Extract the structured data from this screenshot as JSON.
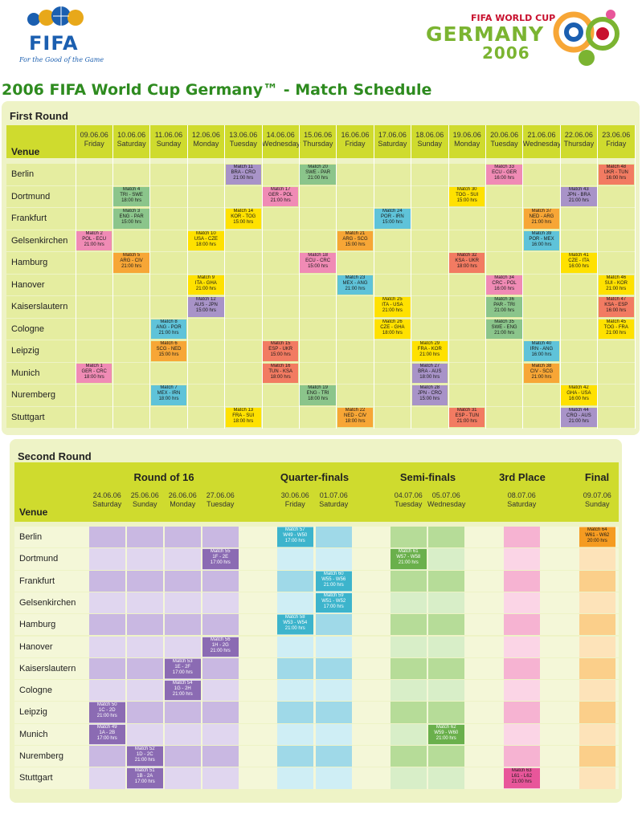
{
  "header": {
    "fifa_logo_text": "FIFA",
    "fifa_slogan": "For the Good of the Game",
    "wc_small": "FIFA WORLD CUP",
    "wc_germany": "GERMANY",
    "wc_year": "2006",
    "title": "2006 FIFA World Cup Germany™  -  Match Schedule"
  },
  "colors": {
    "panel_bg": "#eef3c6",
    "header_band": "#cfdb2e",
    "row_green": "#e5eda0",
    "group_pink": "#f08bb5",
    "group_green": "#8bc58b",
    "group_yellow": "#ffe100",
    "group_orange": "#f7a636",
    "group_blue": "#5fc3d9",
    "group_purple": "#a893c8",
    "group_salmon": "#f27b62",
    "r16": "#8b6bb3",
    "qf": "#3db4cc",
    "sf": "#6ab04c",
    "third": "#e8569a",
    "final": "#f59b21"
  },
  "first_round": {
    "title": "First Round",
    "venue_label": "Venue",
    "dates": [
      {
        "date": "09.06.06",
        "day": "Friday"
      },
      {
        "date": "10.06.06",
        "day": "Saturday"
      },
      {
        "date": "11.06.06",
        "day": "Sunday"
      },
      {
        "date": "12.06.06",
        "day": "Monday"
      },
      {
        "date": "13.06.06",
        "day": "Tuesday"
      },
      {
        "date": "14.06.06",
        "day": "Wednesday"
      },
      {
        "date": "15.06.06",
        "day": "Thursday"
      },
      {
        "date": "16.06.06",
        "day": "Friday"
      },
      {
        "date": "17.06.06",
        "day": "Saturday"
      },
      {
        "date": "18.06.06",
        "day": "Sunday"
      },
      {
        "date": "19.06.06",
        "day": "Monday"
      },
      {
        "date": "20.06.06",
        "day": "Tuesday"
      },
      {
        "date": "21.06.06",
        "day": "Wednesday"
      },
      {
        "date": "22.06.06",
        "day": "Thursday"
      },
      {
        "date": "23.06.06",
        "day": "Friday"
      }
    ],
    "venues": [
      "Berlin",
      "Dortmund",
      "Frankfurt",
      "Gelsenkirchen",
      "Hamburg",
      "Hanover",
      "Kaiserslautern",
      "Cologne",
      "Leipzig",
      "Munich",
      "Nuremberg",
      "Stuttgart"
    ],
    "matches": [
      {
        "row": 0,
        "col": 4,
        "c": "purple",
        "a": "Match 11",
        "b": "BRA - CRO",
        "t": "21:00 hrs"
      },
      {
        "row": 0,
        "col": 6,
        "c": "green",
        "a": "Match 20",
        "b": "SWE - PAR",
        "t": "21:00 hrs"
      },
      {
        "row": 0,
        "col": 11,
        "c": "pink",
        "a": "Match 33",
        "b": "ECU - GER",
        "t": "16:00 hrs"
      },
      {
        "row": 0,
        "col": 14,
        "c": "salmon",
        "a": "Match 48",
        "b": "UKR - TUN",
        "t": "16:00 hrs"
      },
      {
        "row": 1,
        "col": 1,
        "c": "green",
        "a": "Match 4",
        "b": "TRI - SWE",
        "t": "18:00 hrs"
      },
      {
        "row": 1,
        "col": 5,
        "c": "pink",
        "a": "Match 17",
        "b": "GER - POL",
        "t": "21:00 hrs"
      },
      {
        "row": 1,
        "col": 10,
        "c": "yellow",
        "a": "Match 30",
        "b": "TOG - SUI",
        "t": "15:00 hrs"
      },
      {
        "row": 1,
        "col": 13,
        "c": "purple",
        "a": "Match 43",
        "b": "JPN - BRA",
        "t": "21:00 hrs"
      },
      {
        "row": 2,
        "col": 1,
        "c": "green",
        "a": "Match 3",
        "b": "ENG - PAR",
        "t": "15:00 hrs"
      },
      {
        "row": 2,
        "col": 4,
        "c": "yellow",
        "a": "Match 14",
        "b": "KOR - TOG",
        "t": "15:00 hrs"
      },
      {
        "row": 2,
        "col": 8,
        "c": "blue",
        "a": "Match 24",
        "b": "POR - IRN",
        "t": "15:00 hrs"
      },
      {
        "row": 2,
        "col": 12,
        "c": "orange",
        "a": "Match 37",
        "b": "NED - ARG",
        "t": "21:00 hrs"
      },
      {
        "row": 3,
        "col": 0,
        "c": "pink",
        "a": "Match 2",
        "b": "POL - ECU",
        "t": "21:00 hrs"
      },
      {
        "row": 3,
        "col": 3,
        "c": "yellow",
        "a": "Match 10",
        "b": "USA - CZE",
        "t": "18:00 hrs"
      },
      {
        "row": 3,
        "col": 7,
        "c": "orange",
        "a": "Match 21",
        "b": "ARG - SCG",
        "t": "15:00 hrs"
      },
      {
        "row": 3,
        "col": 12,
        "c": "blue",
        "a": "Match 39",
        "b": "POR - MEX",
        "t": "16:00 hrs"
      },
      {
        "row": 4,
        "col": 1,
        "c": "orange",
        "a": "Match 5",
        "b": "ARG - CIV",
        "t": "21:00 hrs"
      },
      {
        "row": 4,
        "col": 6,
        "c": "pink",
        "a": "Match 18",
        "b": "ECU - CRC",
        "t": "15:00 hrs"
      },
      {
        "row": 4,
        "col": 10,
        "c": "salmon",
        "a": "Match 32",
        "b": "KSA - UKR",
        "t": "18:00 hrs"
      },
      {
        "row": 4,
        "col": 13,
        "c": "yellow",
        "a": "Match 41",
        "b": "CZE - ITA",
        "t": "16:00 hrs"
      },
      {
        "row": 5,
        "col": 3,
        "c": "yellow",
        "a": "Match 9",
        "b": "ITA - GHA",
        "t": "21:00 hrs"
      },
      {
        "row": 5,
        "col": 7,
        "c": "blue",
        "a": "Match 23",
        "b": "MEX - ANG",
        "t": "21:00 hrs"
      },
      {
        "row": 5,
        "col": 11,
        "c": "pink",
        "a": "Match 34",
        "b": "CRC - POL",
        "t": "16:00 hrs"
      },
      {
        "row": 5,
        "col": 14,
        "c": "yellow",
        "a": "Match 46",
        "b": "SUI - KOR",
        "t": "21:00 hrs"
      },
      {
        "row": 6,
        "col": 3,
        "c": "purple",
        "a": "Match 12",
        "b": "AUS - JPN",
        "t": "15:00 hrs"
      },
      {
        "row": 6,
        "col": 8,
        "c": "yellow",
        "a": "Match 25",
        "b": "ITA - USA",
        "t": "21:00 hrs"
      },
      {
        "row": 6,
        "col": 11,
        "c": "green",
        "a": "Match 36",
        "b": "PAR - TRI",
        "t": "21:00 hrs"
      },
      {
        "row": 6,
        "col": 14,
        "c": "salmon",
        "a": "Match 47",
        "b": "KSA - ESP",
        "t": "16:00 hrs"
      },
      {
        "row": 7,
        "col": 2,
        "c": "blue",
        "a": "Match 8",
        "b": "ANG - POR",
        "t": "21:00 hrs"
      },
      {
        "row": 7,
        "col": 8,
        "c": "yellow",
        "a": "Match 26",
        "b": "CZE - GHA",
        "t": "18:00 hrs"
      },
      {
        "row": 7,
        "col": 11,
        "c": "green",
        "a": "Match 35",
        "b": "SWE - ENG",
        "t": "21:00 hrs"
      },
      {
        "row": 7,
        "col": 14,
        "c": "yellow",
        "a": "Match 45",
        "b": "TOG - FRA",
        "t": "21:00 hrs"
      },
      {
        "row": 8,
        "col": 2,
        "c": "orange",
        "a": "Match 6",
        "b": "SCG - NED",
        "t": "15:00 hrs"
      },
      {
        "row": 8,
        "col": 5,
        "c": "salmon",
        "a": "Match 15",
        "b": "ESP - UKR",
        "t": "15:00 hrs"
      },
      {
        "row": 8,
        "col": 9,
        "c": "yellow",
        "a": "Match 29",
        "b": "FRA - KOR",
        "t": "21:00 hrs"
      },
      {
        "row": 8,
        "col": 12,
        "c": "blue",
        "a": "Match 40",
        "b": "IRN - ANG",
        "t": "16:00 hrs"
      },
      {
        "row": 9,
        "col": 0,
        "c": "pink",
        "a": "Match 1",
        "b": "GER - CRC",
        "t": "18:00 hrs"
      },
      {
        "row": 9,
        "col": 5,
        "c": "salmon",
        "a": "Match 16",
        "b": "TUN - KSA",
        "t": "18:00 hrs"
      },
      {
        "row": 9,
        "col": 9,
        "c": "purple",
        "a": "Match 27",
        "b": "BRA - AUS",
        "t": "18:00 hrs"
      },
      {
        "row": 9,
        "col": 12,
        "c": "orange",
        "a": "Match 38",
        "b": "CIV - SCG",
        "t": "21:00 hrs"
      },
      {
        "row": 10,
        "col": 2,
        "c": "blue",
        "a": "Match 7",
        "b": "MEX - IRN",
        "t": "18:00 hrs"
      },
      {
        "row": 10,
        "col": 6,
        "c": "green",
        "a": "Match 19",
        "b": "ENG - TRI",
        "t": "18:00 hrs"
      },
      {
        "row": 10,
        "col": 9,
        "c": "purple",
        "a": "Match 28",
        "b": "JPN - CRO",
        "t": "15:00 hrs"
      },
      {
        "row": 10,
        "col": 13,
        "c": "yellow",
        "a": "Match 42",
        "b": "GHA - USA",
        "t": "16:00 hrs"
      },
      {
        "row": 11,
        "col": 4,
        "c": "yellow",
        "a": "Match 13",
        "b": "FRA - SUI",
        "t": "18:00 hrs"
      },
      {
        "row": 11,
        "col": 7,
        "c": "orange",
        "a": "Match 22",
        "b": "NED - CIV",
        "t": "18:00 hrs"
      },
      {
        "row": 11,
        "col": 10,
        "c": "salmon",
        "a": "Match 31",
        "b": "ESP - TUN",
        "t": "21:00 hrs"
      },
      {
        "row": 11,
        "col": 13,
        "c": "purple",
        "a": "Match 44",
        "b": "CRO - AUS",
        "t": "21:00 hrs"
      }
    ]
  },
  "second_round": {
    "title": "Second Round",
    "venue_label": "Venue",
    "stages": [
      "Round of 16",
      "Quarter-finals",
      "Semi-finals",
      "3rd Place",
      "Final"
    ],
    "dates": [
      {
        "date": "24.06.06",
        "day": "Saturday"
      },
      {
        "date": "25.06.06",
        "day": "Sunday"
      },
      {
        "date": "26.06.06",
        "day": "Monday"
      },
      {
        "date": "27.06.06",
        "day": "Tuesday"
      },
      {
        "date": "30.06.06",
        "day": "Friday"
      },
      {
        "date": "01.07.06",
        "day": "Saturday"
      },
      {
        "date": "04.07.06",
        "day": "Tuesday"
      },
      {
        "date": "05.07.06",
        "day": "Wednesday"
      },
      {
        "date": "08.07.06",
        "day": "Saturday"
      },
      {
        "date": "09.07.06",
        "day": "Sunday"
      }
    ],
    "venues": [
      "Berlin",
      "Dortmund",
      "Frankfurt",
      "Gelsenkirchen",
      "Hamburg",
      "Hanover",
      "Kaiserslautern",
      "Cologne",
      "Leipzig",
      "Munich",
      "Nuremberg",
      "Stuttgart"
    ],
    "matches": [
      {
        "row": 0,
        "col": 4,
        "c": "qf",
        "a": "Match 57",
        "b": "W49 - W50",
        "t": "17:00 hrs"
      },
      {
        "row": 0,
        "col": 9,
        "c": "final",
        "a": "Match 64",
        "b": "W61 - W62",
        "t": "20:00 hrs"
      },
      {
        "row": 1,
        "col": 3,
        "c": "r16",
        "a": "Match 55",
        "b": "1F - 2E",
        "t": "17:00 hrs"
      },
      {
        "row": 1,
        "col": 6,
        "c": "sf",
        "a": "Match 61",
        "b": "W57 - W58",
        "t": "21:00 hrs"
      },
      {
        "row": 2,
        "col": 5,
        "c": "qf",
        "a": "Match 60",
        "b": "W55 - W56",
        "t": "21:00 hrs"
      },
      {
        "row": 3,
        "col": 5,
        "c": "qf",
        "a": "Match 59",
        "b": "W51 - W52",
        "t": "17:00 hrs"
      },
      {
        "row": 4,
        "col": 4,
        "c": "qf",
        "a": "Match 58",
        "b": "W53 - W54",
        "t": "21:00 hrs"
      },
      {
        "row": 5,
        "col": 3,
        "c": "r16",
        "a": "Match 56",
        "b": "1H - 2G",
        "t": "21:00 hrs"
      },
      {
        "row": 6,
        "col": 2,
        "c": "r16",
        "a": "Match 53",
        "b": "1E - 2F",
        "t": "17:00 hrs"
      },
      {
        "row": 7,
        "col": 2,
        "c": "r16",
        "a": "Match 54",
        "b": "1G - 2H",
        "t": "21:00 hrs"
      },
      {
        "row": 8,
        "col": 0,
        "c": "r16",
        "a": "Match 50",
        "b": "1C - 2D",
        "t": "21:00 hrs"
      },
      {
        "row": 9,
        "col": 0,
        "c": "r16",
        "a": "Match 49",
        "b": "1A - 2B",
        "t": "17:00 hrs"
      },
      {
        "row": 9,
        "col": 7,
        "c": "sf",
        "a": "Match 62",
        "b": "W59 - W60",
        "t": "21:00 hrs"
      },
      {
        "row": 10,
        "col": 1,
        "c": "r16",
        "a": "Match 52",
        "b": "1D - 2C",
        "t": "21:00 hrs"
      },
      {
        "row": 11,
        "col": 1,
        "c": "r16",
        "a": "Match 51",
        "b": "1B - 2A",
        "t": "17:00 hrs"
      },
      {
        "row": 11,
        "col": 8,
        "c": "third",
        "a": "Match 63",
        "b": "L61 - L62",
        "t": "21:00 hrs"
      }
    ]
  }
}
